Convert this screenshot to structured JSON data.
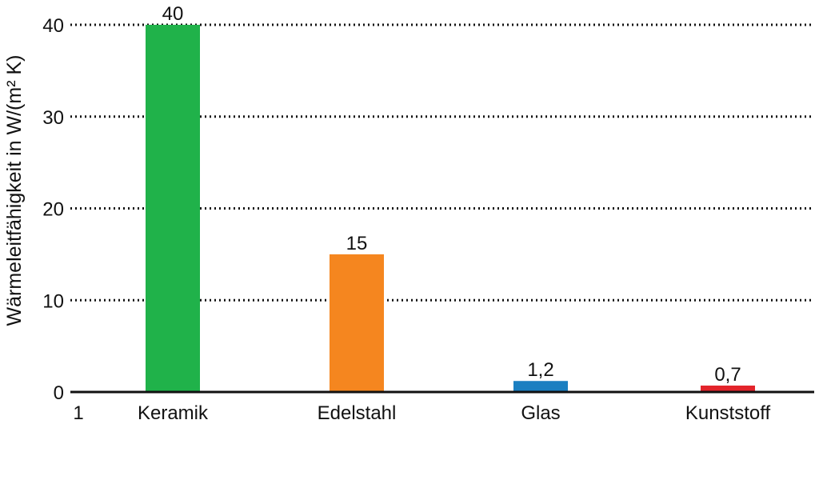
{
  "chart_data": {
    "type": "bar",
    "title": "",
    "xlabel": "",
    "ylabel": "Wärmeleitfähigkeit in W/(m² K)",
    "categories": [
      "Keramik",
      "Edelstahl",
      "Glas",
      "Kunststoff"
    ],
    "values": [
      40,
      15,
      1.2,
      0.7
    ],
    "value_labels": [
      "40",
      "15",
      "1,2",
      "0,7"
    ],
    "colors": [
      "#20b24a",
      "#f5861f",
      "#1b7fc1",
      "#e3242b"
    ],
    "ylim": [
      0,
      40
    ],
    "yticks": [
      0,
      10,
      20,
      30,
      40
    ],
    "grid": "dotted horizontal",
    "x_origin_label": "1"
  }
}
